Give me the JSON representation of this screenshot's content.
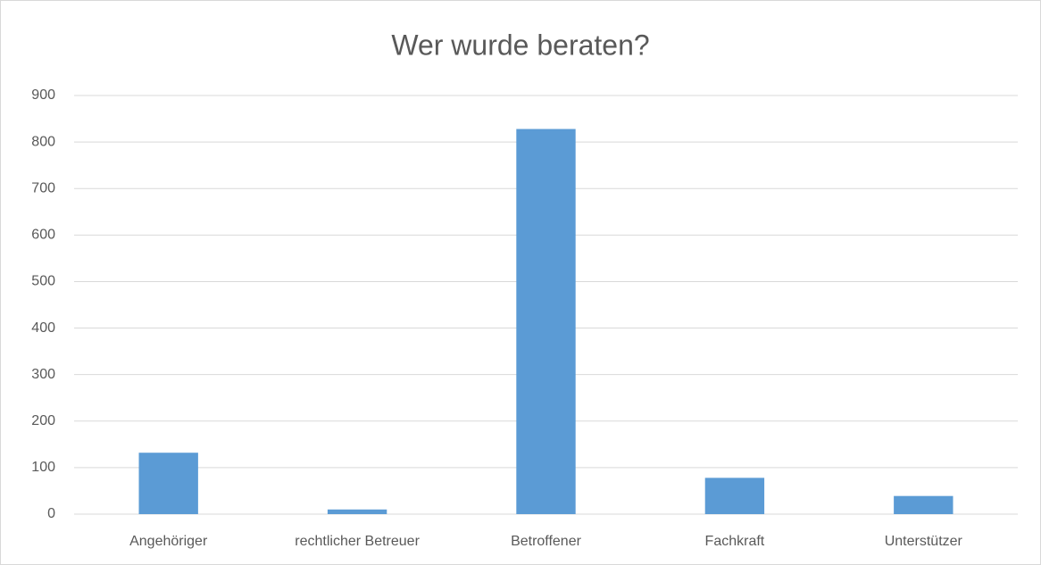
{
  "chart_data": {
    "type": "bar",
    "title": "Wer wurde beraten?",
    "categories": [
      "Angehöriger",
      "rechtlicher Betreuer",
      "Betroffener",
      "Fachkraft",
      "Unterstützer"
    ],
    "values": [
      132,
      10,
      828,
      78,
      39
    ],
    "color": "#5b9bd5",
    "ylim": [
      0,
      900
    ],
    "yticks": [
      0,
      100,
      200,
      300,
      400,
      500,
      600,
      700,
      800,
      900
    ],
    "grid": true
  }
}
